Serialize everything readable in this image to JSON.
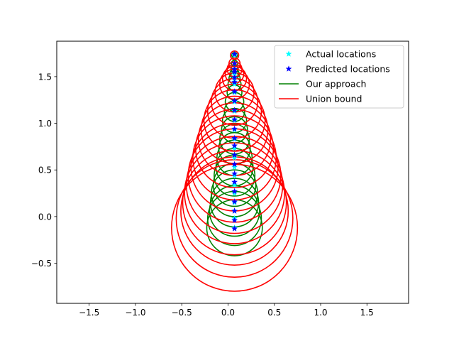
{
  "chart_data": {
    "type": "scatter",
    "title": "",
    "xlabel": "",
    "ylabel": "",
    "xlim": [
      -1.85,
      1.95
    ],
    "ylim": [
      -0.93,
      1.88
    ],
    "x_ticks": [
      -1.5,
      -1.0,
      -0.5,
      0.0,
      0.5,
      1.0,
      1.5
    ],
    "x_tick_labels": [
      "−1.5",
      "−1.0",
      "−0.5",
      "0.0",
      "0.5",
      "1.0",
      "1.5"
    ],
    "y_ticks": [
      -0.5,
      0.0,
      0.5,
      1.0,
      1.5
    ],
    "y_tick_labels": [
      "−0.5",
      "0.0",
      "0.5",
      "1.0",
      "1.5"
    ],
    "grid": false,
    "legend_position": "upper right",
    "series": [
      {
        "name": "Actual locations",
        "kind": "marker",
        "marker": "star",
        "color": "#00ffff",
        "x": [
          0.07,
          0.07,
          0.07,
          0.07,
          0.07,
          0.07,
          0.07,
          0.07,
          0.07,
          0.07,
          0.07,
          0.07,
          0.07,
          0.07,
          0.07,
          0.07,
          0.07,
          0.07,
          0.07,
          0.07,
          0.07,
          0.07
        ],
        "y": [
          -0.12,
          -0.02,
          0.06,
          0.15,
          0.25,
          0.34,
          0.44,
          0.53,
          0.63,
          0.73,
          0.83,
          0.93,
          1.03,
          1.13,
          1.23,
          1.33,
          1.42,
          1.48,
          1.53,
          1.58,
          1.64,
          1.73
        ]
      },
      {
        "name": "Predicted locations",
        "kind": "marker",
        "marker": "star",
        "color": "#0000ff",
        "x": [
          0.07,
          0.07,
          0.07,
          0.07,
          0.07,
          0.07,
          0.07,
          0.07,
          0.07,
          0.07,
          0.07,
          0.07,
          0.07,
          0.07,
          0.07,
          0.07,
          0.07,
          0.07,
          0.07,
          0.07,
          0.07,
          0.07
        ],
        "y": [
          -0.13,
          -0.04,
          0.06,
          0.16,
          0.27,
          0.37,
          0.46,
          0.56,
          0.66,
          0.76,
          0.84,
          0.94,
          1.04,
          1.14,
          1.24,
          1.34,
          1.44,
          1.49,
          1.55,
          1.58,
          1.64,
          1.74
        ]
      },
      {
        "name": "Our approach",
        "kind": "circles",
        "color": "#008000",
        "circles": [
          {
            "cx": 0.07,
            "cy": -0.12,
            "r": 0.3
          },
          {
            "cx": 0.07,
            "cy": -0.02,
            "r": 0.29
          },
          {
            "cx": 0.07,
            "cy": 0.06,
            "r": 0.27
          },
          {
            "cx": 0.07,
            "cy": 0.15,
            "r": 0.26
          },
          {
            "cx": 0.07,
            "cy": 0.25,
            "r": 0.25
          },
          {
            "cx": 0.07,
            "cy": 0.34,
            "r": 0.23
          },
          {
            "cx": 0.07,
            "cy": 0.44,
            "r": 0.22
          },
          {
            "cx": 0.07,
            "cy": 0.53,
            "r": 0.2
          },
          {
            "cx": 0.07,
            "cy": 0.63,
            "r": 0.19
          },
          {
            "cx": 0.07,
            "cy": 0.73,
            "r": 0.17
          },
          {
            "cx": 0.07,
            "cy": 0.83,
            "r": 0.16
          },
          {
            "cx": 0.07,
            "cy": 0.93,
            "r": 0.14
          },
          {
            "cx": 0.07,
            "cy": 1.03,
            "r": 0.13
          },
          {
            "cx": 0.07,
            "cy": 1.13,
            "r": 0.11
          },
          {
            "cx": 0.07,
            "cy": 1.23,
            "r": 0.1
          },
          {
            "cx": 0.07,
            "cy": 1.33,
            "r": 0.08
          },
          {
            "cx": 0.07,
            "cy": 1.42,
            "r": 0.07
          },
          {
            "cx": 0.07,
            "cy": 1.48,
            "r": 0.06
          },
          {
            "cx": 0.07,
            "cy": 1.53,
            "r": 0.05
          },
          {
            "cx": 0.07,
            "cy": 1.58,
            "r": 0.04
          },
          {
            "cx": 0.07,
            "cy": 1.64,
            "r": 0.035
          },
          {
            "cx": 0.07,
            "cy": 1.73,
            "r": 0.03
          }
        ]
      },
      {
        "name": "Union bound",
        "kind": "circles",
        "color": "#ff0000",
        "circles": [
          {
            "cx": 0.07,
            "cy": -0.12,
            "r": 0.68
          },
          {
            "cx": 0.07,
            "cy": -0.02,
            "r": 0.63
          },
          {
            "cx": 0.07,
            "cy": 0.06,
            "r": 0.58
          },
          {
            "cx": 0.07,
            "cy": 0.15,
            "r": 0.56
          },
          {
            "cx": 0.07,
            "cy": 0.25,
            "r": 0.54
          },
          {
            "cx": 0.07,
            "cy": 0.34,
            "r": 0.52
          },
          {
            "cx": 0.07,
            "cy": 0.44,
            "r": 0.5
          },
          {
            "cx": 0.07,
            "cy": 0.53,
            "r": 0.47
          },
          {
            "cx": 0.07,
            "cy": 0.63,
            "r": 0.45
          },
          {
            "cx": 0.07,
            "cy": 0.73,
            "r": 0.42
          },
          {
            "cx": 0.07,
            "cy": 0.83,
            "r": 0.39
          },
          {
            "cx": 0.07,
            "cy": 0.93,
            "r": 0.36
          },
          {
            "cx": 0.07,
            "cy": 1.03,
            "r": 0.33
          },
          {
            "cx": 0.07,
            "cy": 1.13,
            "r": 0.29
          },
          {
            "cx": 0.07,
            "cy": 1.23,
            "r": 0.25
          },
          {
            "cx": 0.07,
            "cy": 1.33,
            "r": 0.21
          },
          {
            "cx": 0.07,
            "cy": 1.42,
            "r": 0.16
          },
          {
            "cx": 0.07,
            "cy": 1.48,
            "r": 0.13
          },
          {
            "cx": 0.07,
            "cy": 1.53,
            "r": 0.1
          },
          {
            "cx": 0.07,
            "cy": 1.58,
            "r": 0.08
          },
          {
            "cx": 0.07,
            "cy": 1.64,
            "r": 0.06
          },
          {
            "cx": 0.07,
            "cy": 1.73,
            "r": 0.045
          }
        ]
      }
    ]
  }
}
